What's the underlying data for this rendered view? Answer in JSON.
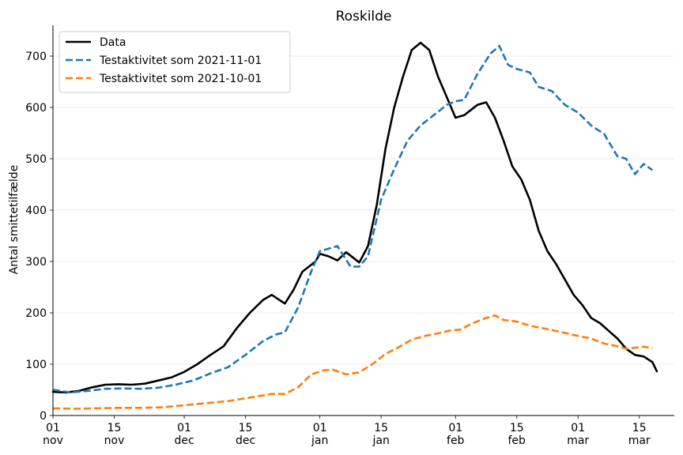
{
  "chart_data": {
    "type": "line",
    "title": "Roskilde",
    "xlabel": "",
    "ylabel": "Antal smittetilfælde",
    "xlim": [
      "2021-11-01",
      "2022-03-23"
    ],
    "ylim": [
      0,
      760
    ],
    "yticks": [
      0,
      100,
      200,
      300,
      400,
      500,
      600,
      700
    ],
    "xticks": [
      {
        "date": "2021-11-01",
        "day": "01",
        "month": "nov"
      },
      {
        "date": "2021-11-15",
        "day": "15",
        "month": "nov"
      },
      {
        "date": "2021-12-01",
        "day": "01",
        "month": "dec"
      },
      {
        "date": "2021-12-15",
        "day": "15",
        "month": "dec"
      },
      {
        "date": "2022-01-01",
        "day": "01",
        "month": "jan"
      },
      {
        "date": "2022-01-15",
        "day": "15",
        "month": "jan"
      },
      {
        "date": "2022-02-01",
        "day": "01",
        "month": "feb"
      },
      {
        "date": "2022-02-15",
        "day": "15",
        "month": "feb"
      },
      {
        "date": "2022-03-01",
        "day": "01",
        "month": "mar"
      },
      {
        "date": "2022-03-15",
        "day": "15",
        "month": "mar"
      }
    ],
    "grid": {
      "y": true,
      "x": false
    },
    "legend_position": "top-left",
    "series": [
      {
        "name": "Data",
        "color": "#000000",
        "dash": "solid",
        "points": [
          [
            "2021-11-01",
            46
          ],
          [
            "2021-11-04",
            45
          ],
          [
            "2021-11-07",
            48
          ],
          [
            "2021-11-10",
            55
          ],
          [
            "2021-11-13",
            60
          ],
          [
            "2021-11-16",
            61
          ],
          [
            "2021-11-19",
            60
          ],
          [
            "2021-11-22",
            62
          ],
          [
            "2021-11-25",
            68
          ],
          [
            "2021-11-28",
            74
          ],
          [
            "2021-12-01",
            85
          ],
          [
            "2021-12-04",
            100
          ],
          [
            "2021-12-07",
            118
          ],
          [
            "2021-12-10",
            135
          ],
          [
            "2021-12-13",
            170
          ],
          [
            "2021-12-16",
            200
          ],
          [
            "2021-12-19",
            225
          ],
          [
            "2021-12-21",
            235
          ],
          [
            "2021-12-24",
            218
          ],
          [
            "2021-12-26",
            245
          ],
          [
            "2021-12-28",
            280
          ],
          [
            "2021-12-31",
            300
          ],
          [
            "2022-01-01",
            315
          ],
          [
            "2022-01-03",
            310
          ],
          [
            "2022-01-05",
            302
          ],
          [
            "2022-01-07",
            318
          ],
          [
            "2022-01-10",
            298
          ],
          [
            "2022-01-12",
            330
          ],
          [
            "2022-01-14",
            410
          ],
          [
            "2022-01-16",
            520
          ],
          [
            "2022-01-18",
            600
          ],
          [
            "2022-01-20",
            660
          ],
          [
            "2022-01-22",
            712
          ],
          [
            "2022-01-24",
            726
          ],
          [
            "2022-01-26",
            712
          ],
          [
            "2022-01-28",
            660
          ],
          [
            "2022-01-30",
            620
          ],
          [
            "2022-02-01",
            580
          ],
          [
            "2022-02-03",
            585
          ],
          [
            "2022-02-06",
            605
          ],
          [
            "2022-02-08",
            610
          ],
          [
            "2022-02-10",
            580
          ],
          [
            "2022-02-12",
            535
          ],
          [
            "2022-02-14",
            485
          ],
          [
            "2022-02-16",
            460
          ],
          [
            "2022-02-18",
            420
          ],
          [
            "2022-02-20",
            360
          ],
          [
            "2022-02-22",
            320
          ],
          [
            "2022-02-24",
            295
          ],
          [
            "2022-02-26",
            265
          ],
          [
            "2022-02-28",
            235
          ],
          [
            "2022-03-02",
            215
          ],
          [
            "2022-03-04",
            190
          ],
          [
            "2022-03-06",
            180
          ],
          [
            "2022-03-08",
            165
          ],
          [
            "2022-03-10",
            150
          ],
          [
            "2022-03-12",
            130
          ],
          [
            "2022-03-14",
            118
          ],
          [
            "2022-03-16",
            115
          ],
          [
            "2022-03-18",
            104
          ],
          [
            "2022-03-19",
            86
          ]
        ]
      },
      {
        "name": "Testaktivitet som 2021-11-01",
        "color": "#1f77b4",
        "dash": "dashed",
        "points": [
          [
            "2021-11-01",
            50
          ],
          [
            "2021-11-05",
            45
          ],
          [
            "2021-11-09",
            48
          ],
          [
            "2021-11-13",
            52
          ],
          [
            "2021-11-17",
            53
          ],
          [
            "2021-11-21",
            52
          ],
          [
            "2021-11-25",
            54
          ],
          [
            "2021-11-29",
            60
          ],
          [
            "2021-12-03",
            68
          ],
          [
            "2021-12-07",
            82
          ],
          [
            "2021-12-11",
            94
          ],
          [
            "2021-12-15",
            118
          ],
          [
            "2021-12-19",
            145
          ],
          [
            "2021-12-22",
            158
          ],
          [
            "2021-12-24",
            162
          ],
          [
            "2021-12-27",
            210
          ],
          [
            "2021-12-30",
            280
          ],
          [
            "2022-01-01",
            320
          ],
          [
            "2022-01-03",
            325
          ],
          [
            "2022-01-05",
            330
          ],
          [
            "2022-01-08",
            290
          ],
          [
            "2022-01-10",
            290
          ],
          [
            "2022-01-12",
            310
          ],
          [
            "2022-01-15",
            420
          ],
          [
            "2022-01-18",
            480
          ],
          [
            "2022-01-21",
            535
          ],
          [
            "2022-01-24",
            565
          ],
          [
            "2022-01-27",
            585
          ],
          [
            "2022-01-30",
            605
          ],
          [
            "2022-02-01",
            612
          ],
          [
            "2022-02-03",
            615
          ],
          [
            "2022-02-06",
            665
          ],
          [
            "2022-02-09",
            705
          ],
          [
            "2022-02-11",
            720
          ],
          [
            "2022-02-13",
            683
          ],
          [
            "2022-02-15",
            675
          ],
          [
            "2022-02-18",
            668
          ],
          [
            "2022-02-20",
            640
          ],
          [
            "2022-02-23",
            632
          ],
          [
            "2022-02-26",
            605
          ],
          [
            "2022-03-01",
            590
          ],
          [
            "2022-03-04",
            565
          ],
          [
            "2022-03-07",
            548
          ],
          [
            "2022-03-10",
            505
          ],
          [
            "2022-03-12",
            500
          ],
          [
            "2022-03-14",
            470
          ],
          [
            "2022-03-16",
            490
          ],
          [
            "2022-03-18",
            478
          ]
        ]
      },
      {
        "name": "Testaktivitet som 2021-10-01",
        "color": "#ff7f0e",
        "dash": "dashed",
        "points": [
          [
            "2021-11-01",
            14
          ],
          [
            "2021-11-06",
            13
          ],
          [
            "2021-11-11",
            14
          ],
          [
            "2021-11-16",
            15
          ],
          [
            "2021-11-21",
            15
          ],
          [
            "2021-11-26",
            16
          ],
          [
            "2021-12-01",
            20
          ],
          [
            "2021-12-06",
            24
          ],
          [
            "2021-12-11",
            28
          ],
          [
            "2021-12-16",
            35
          ],
          [
            "2021-12-21",
            42
          ],
          [
            "2021-12-24",
            42
          ],
          [
            "2021-12-27",
            55
          ],
          [
            "2021-12-30",
            80
          ],
          [
            "2022-01-02",
            88
          ],
          [
            "2022-01-04",
            89
          ],
          [
            "2022-01-07",
            80
          ],
          [
            "2022-01-10",
            84
          ],
          [
            "2022-01-13",
            100
          ],
          [
            "2022-01-16",
            120
          ],
          [
            "2022-01-19",
            133
          ],
          [
            "2022-01-22",
            148
          ],
          [
            "2022-01-25",
            155
          ],
          [
            "2022-01-28",
            160
          ],
          [
            "2022-01-31",
            166
          ],
          [
            "2022-02-02",
            167
          ],
          [
            "2022-02-05",
            180
          ],
          [
            "2022-02-08",
            190
          ],
          [
            "2022-02-10",
            195
          ],
          [
            "2022-02-12",
            186
          ],
          [
            "2022-02-15",
            183
          ],
          [
            "2022-02-18",
            175
          ],
          [
            "2022-02-21",
            170
          ],
          [
            "2022-02-25",
            163
          ],
          [
            "2022-03-01",
            155
          ],
          [
            "2022-03-04",
            150
          ],
          [
            "2022-03-07",
            140
          ],
          [
            "2022-03-10",
            135
          ],
          [
            "2022-03-12",
            130
          ],
          [
            "2022-03-14",
            132
          ],
          [
            "2022-03-16",
            134
          ],
          [
            "2022-03-18",
            131
          ]
        ]
      }
    ]
  }
}
